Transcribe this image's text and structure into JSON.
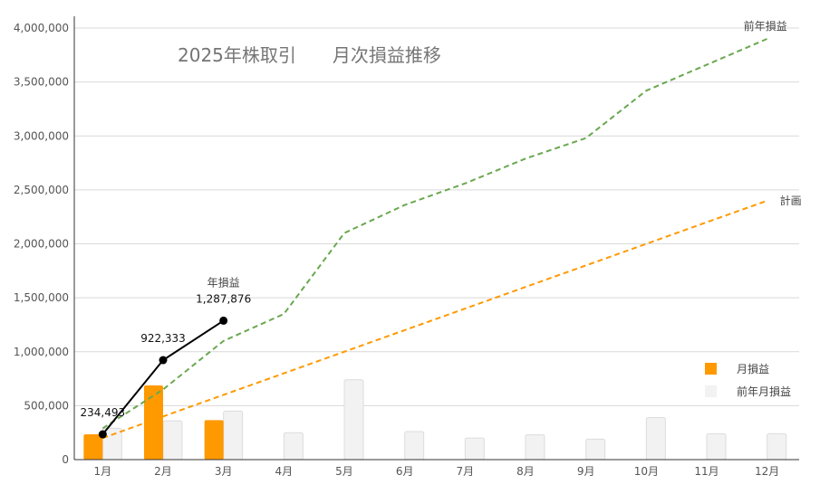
{
  "chart_data": {
    "type": "bar+line",
    "title": "2025年株取引　　月次損益推移",
    "categories": [
      "1月",
      "2月",
      "3月",
      "4月",
      "5月",
      "6月",
      "7月",
      "8月",
      "9月",
      "10月",
      "11月",
      "12月"
    ],
    "ylim": [
      0,
      4000000
    ],
    "yticks": [
      0,
      500000,
      1000000,
      1500000,
      2000000,
      2500000,
      3000000,
      3500000,
      4000000
    ],
    "ytick_labels": [
      "0",
      "500,000",
      "1,000,000",
      "1,500,000",
      "2,000,000",
      "2,500,000",
      "3,000,000",
      "3,500,000",
      "4,000,000"
    ],
    "grid": true,
    "bar_series": [
      {
        "name": "月損益",
        "color": "#ff9900",
        "values": [
          234493,
          687840,
          365543,
          null,
          null,
          null,
          null,
          null,
          null,
          null,
          null,
          null
        ]
      },
      {
        "name": "前年月損益",
        "color": "#f2f2f2",
        "values": [
          290000,
          360000,
          450000,
          250000,
          740000,
          260000,
          200000,
          230000,
          190000,
          390000,
          240000,
          240000
        ]
      }
    ],
    "line_series": [
      {
        "name": "年損益",
        "color": "#000000",
        "values": [
          234493,
          922333,
          1287876
        ],
        "labels": [
          "234,493",
          "922,333",
          "1,287,876"
        ],
        "end_label": "年損益"
      },
      {
        "name": "前年損益",
        "color": "#6aa84f",
        "values": [
          290000,
          650000,
          1100000,
          1350000,
          2100000,
          2360000,
          2560000,
          2790000,
          2980000,
          3420000,
          3660000,
          3900000
        ],
        "end_label": "前年損益"
      },
      {
        "name": "計画",
        "color": "#ff9900",
        "values": [
          200000,
          400000,
          600000,
          800000,
          1000000,
          1200000,
          1400000,
          1600000,
          1800000,
          2000000,
          2200000,
          2400000
        ],
        "end_label": "計画"
      }
    ],
    "legend": {
      "placement": "right",
      "items": [
        "月損益",
        "前年月損益"
      ]
    }
  }
}
